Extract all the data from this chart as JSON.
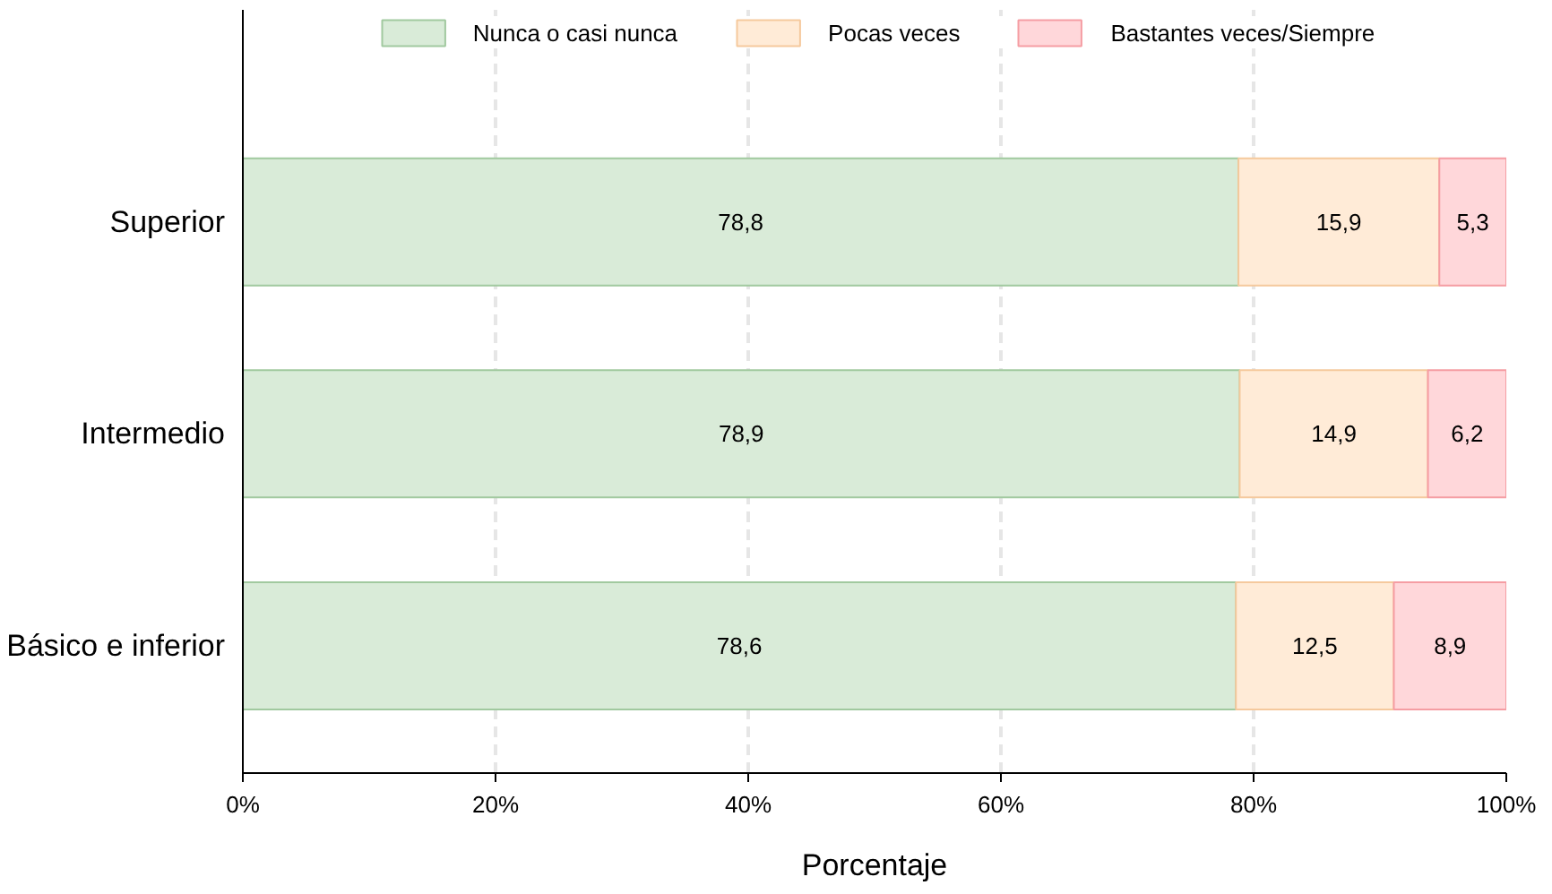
{
  "chart_data": {
    "type": "bar",
    "orientation": "horizontal",
    "stacked": true,
    "xlabel": "Porcentaje",
    "categories": [
      "Superior",
      "Intermedio",
      "Básico e inferior"
    ],
    "series": [
      {
        "name": "Nunca o casi nunca",
        "color": "#d9ebd8",
        "values": [
          78.8,
          78.9,
          78.6
        ],
        "value_labels": [
          "78,8",
          "78,9",
          "78,6"
        ]
      },
      {
        "name": "Pocas veces",
        "color": "#ffebd7",
        "values": [
          15.9,
          14.9,
          12.5
        ],
        "value_labels": [
          "15,9",
          "14,9",
          "12,5"
        ]
      },
      {
        "name": "Bastantes veces/Siempre",
        "color": "#ffd7da",
        "values": [
          5.3,
          6.2,
          8.9
        ],
        "value_labels": [
          "5,3",
          "6,2",
          "8,9"
        ]
      }
    ],
    "xlim": [
      0,
      100
    ],
    "xticks": [
      {
        "value": 0,
        "label": "0%"
      },
      {
        "value": 20,
        "label": "20%"
      },
      {
        "value": 40,
        "label": "40%"
      },
      {
        "value": 60,
        "label": "60%"
      },
      {
        "value": 80,
        "label": "80%"
      },
      {
        "value": 100,
        "label": "100%"
      }
    ],
    "grid": "x",
    "legend": "top"
  }
}
